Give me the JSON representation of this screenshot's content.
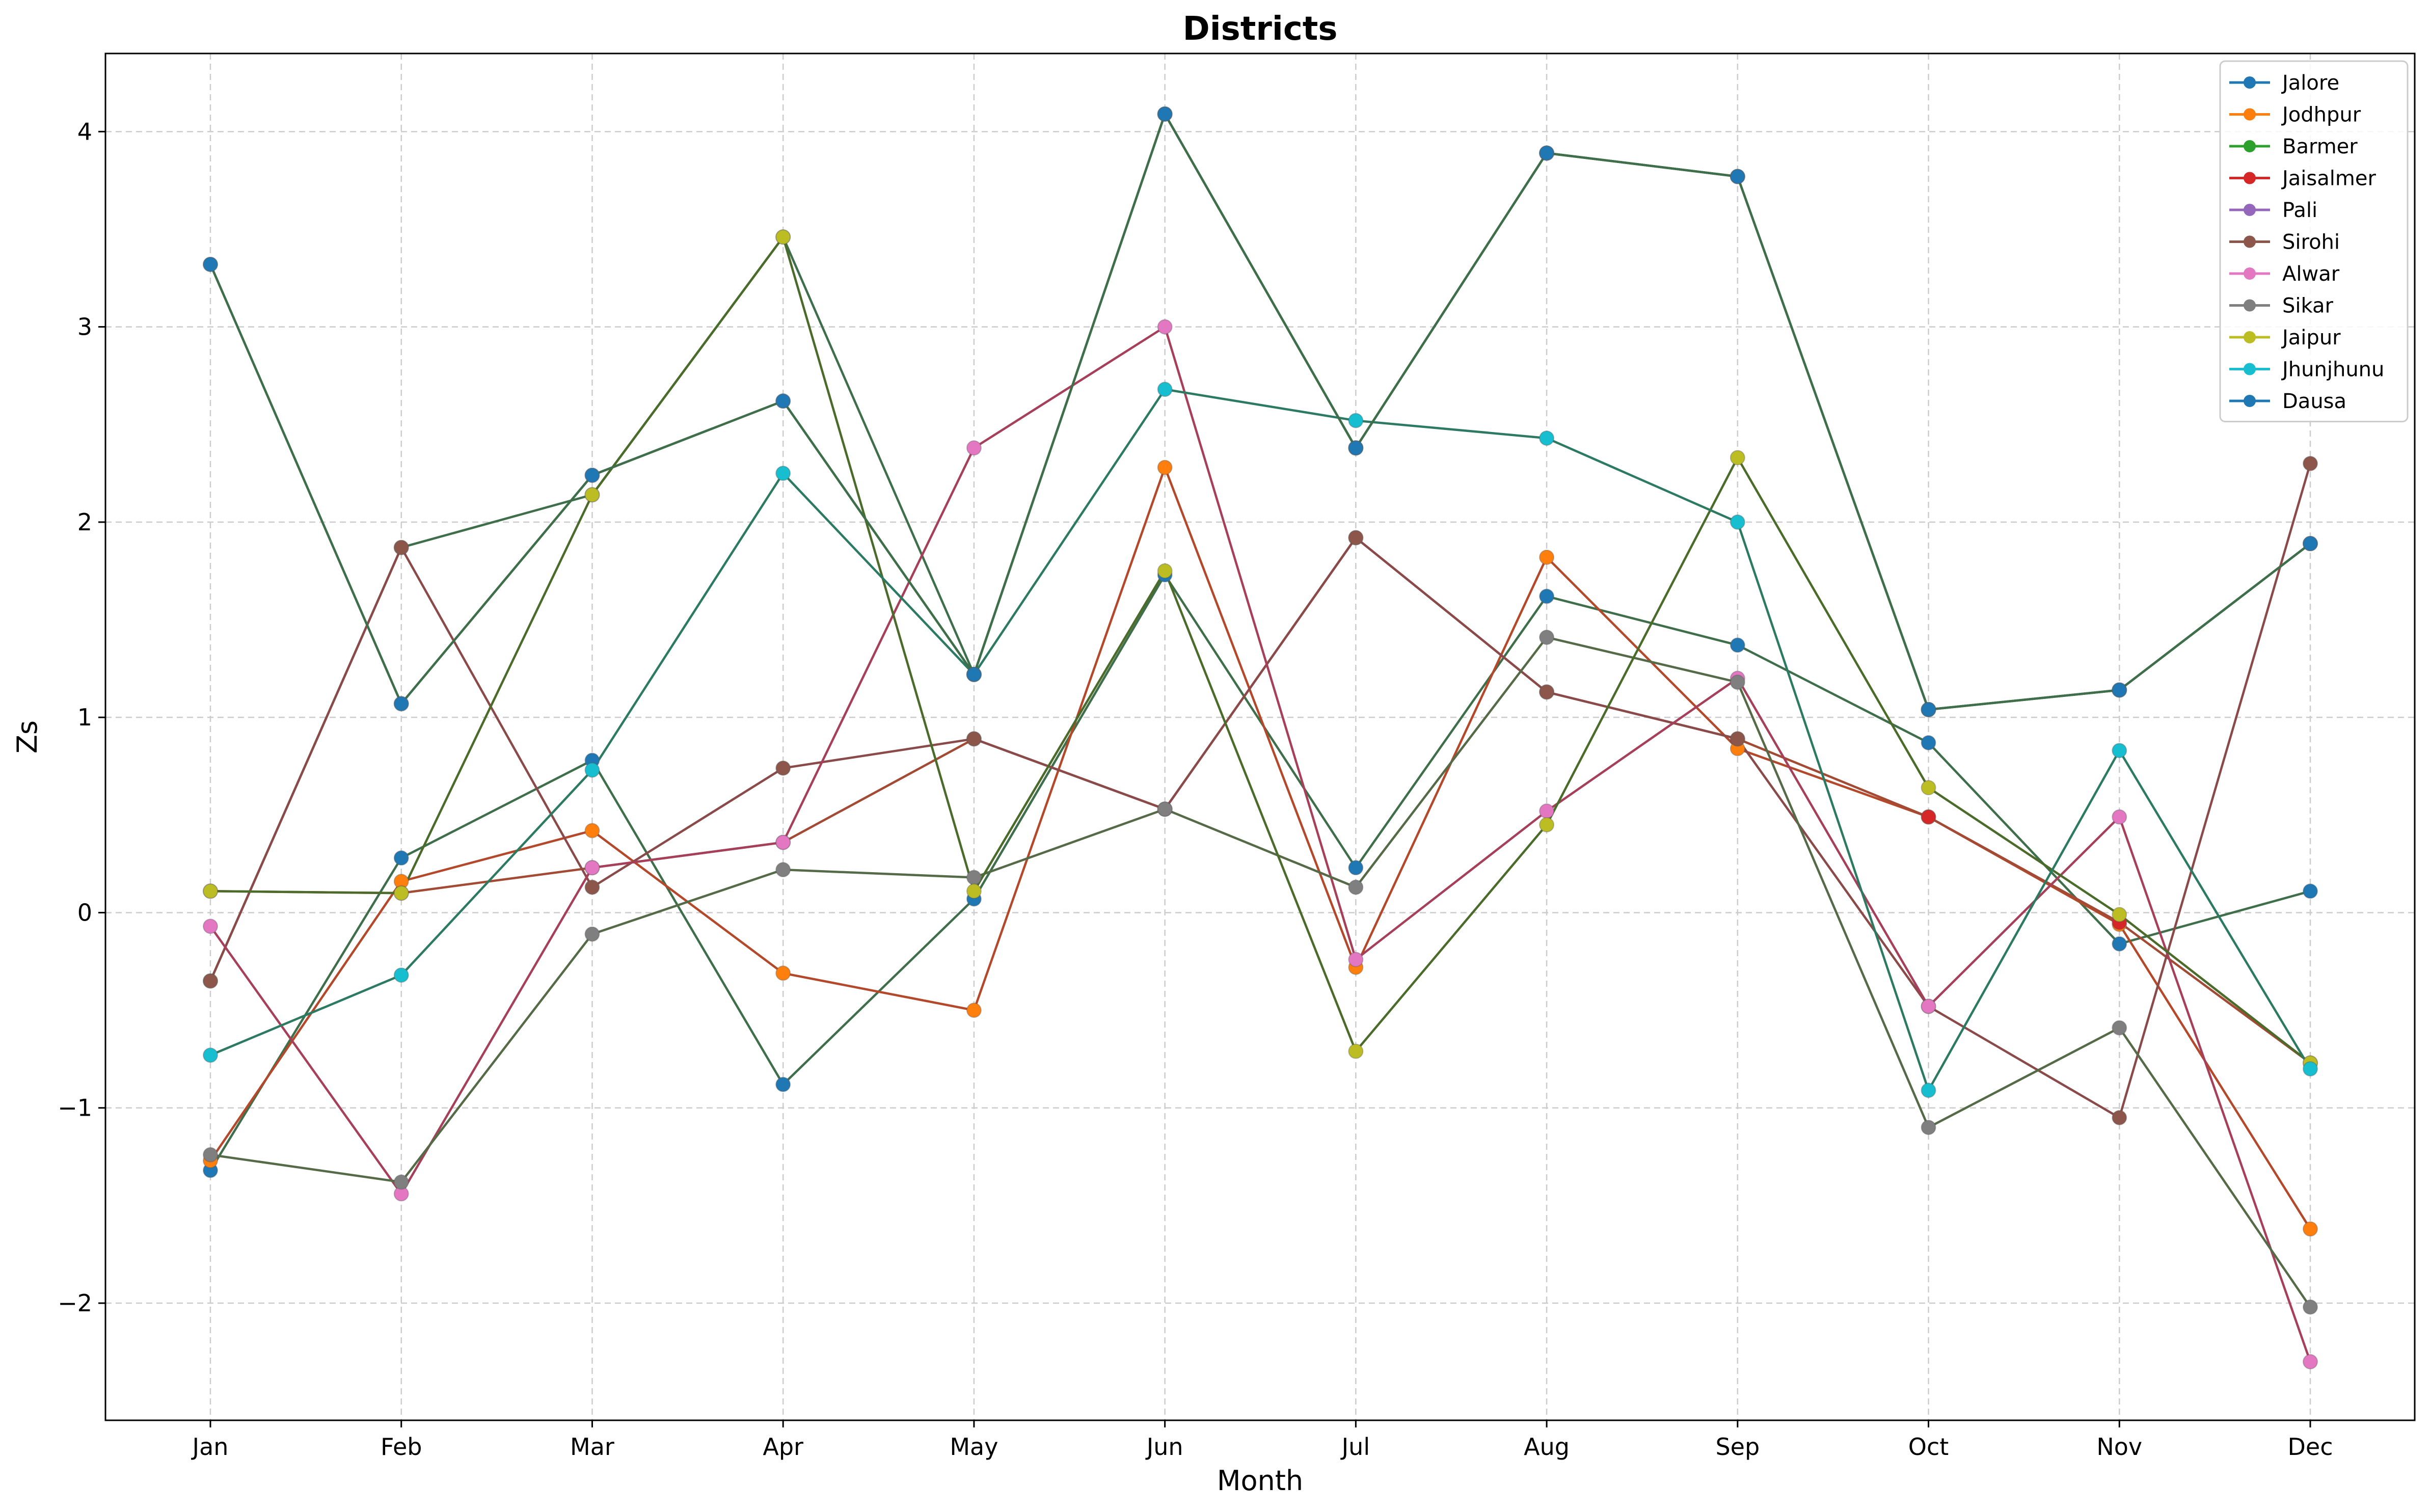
{
  "chart_data": {
    "type": "line",
    "title": "Districts",
    "xlabel": "Month",
    "ylabel": "Zs",
    "categories": [
      "Jan",
      "Feb",
      "Mar",
      "Apr",
      "May",
      "Jun",
      "Jul",
      "Aug",
      "Sep",
      "Oct",
      "Nov",
      "Dec"
    ],
    "ylim": [
      -2.6,
      4.4
    ],
    "yticks": [
      -2,
      -1,
      0,
      1,
      2,
      3,
      4
    ],
    "ytick_labels": [
      "−2",
      "−1",
      "0",
      "1",
      "2",
      "3",
      "4"
    ],
    "grid": true,
    "legend_position": "top-right",
    "series": [
      {
        "name": "Jalore",
        "color": "#1f77b4",
        "values": [
          -1.32,
          0.28,
          0.78,
          -0.88,
          0.07,
          1.73,
          0.23,
          1.62,
          1.37,
          0.87,
          -0.16,
          0.11
        ]
      },
      {
        "name": "Jodhpur",
        "color": "#ff7f0e",
        "values": [
          -1.27,
          0.16,
          0.42,
          -0.31,
          -0.5,
          2.28,
          -0.28,
          1.82,
          0.84,
          0.49,
          -0.06,
          -1.62
        ]
      },
      {
        "name": "Barmer",
        "color": "#2ca02c",
        "values": [
          -0.35,
          1.87,
          2.14,
          3.46,
          1.22,
          4.09,
          2.38,
          3.89,
          3.77,
          1.04,
          1.14,
          1.89
        ]
      },
      {
        "name": "Jaisalmer",
        "color": "#d62728",
        "values": [
          0.11,
          0.1,
          0.23,
          0.36,
          0.89,
          0.53,
          1.92,
          1.13,
          0.89,
          0.49,
          -0.05,
          -0.77
        ]
      },
      {
        "name": "Pali",
        "color": "#9467bd",
        "values": [
          3.32,
          1.07,
          2.24,
          2.62,
          1.22,
          4.09,
          2.38,
          3.89,
          3.77,
          1.04,
          1.14,
          1.89
        ]
      },
      {
        "name": "Sirohi",
        "color": "#8c564b",
        "values": [
          -0.35,
          1.87,
          0.13,
          0.74,
          0.89,
          0.53,
          1.92,
          1.13,
          0.89,
          -0.48,
          -1.05,
          2.3
        ]
      },
      {
        "name": "Alwar",
        "color": "#e377c2",
        "values": [
          -0.07,
          -1.44,
          0.23,
          0.36,
          2.38,
          3.0,
          -0.24,
          0.52,
          1.2,
          -0.48,
          0.49,
          -2.3
        ]
      },
      {
        "name": "Sikar",
        "color": "#7f7f7f",
        "values": [
          -1.24,
          -1.38,
          -0.11,
          0.22,
          0.18,
          0.53,
          0.13,
          1.41,
          1.18,
          -1.1,
          -0.59,
          -2.02
        ]
      },
      {
        "name": "Jaipur",
        "color": "#bcbd22",
        "values": [
          0.11,
          0.1,
          2.14,
          3.46,
          0.11,
          1.75,
          -0.71,
          0.45,
          2.33,
          0.64,
          -0.01,
          -0.77
        ]
      },
      {
        "name": "Jhunjhunu",
        "color": "#17becf",
        "values": [
          -0.73,
          -0.32,
          0.73,
          2.25,
          1.22,
          2.68,
          2.52,
          2.43,
          2.0,
          -0.91,
          0.83,
          -0.8
        ]
      },
      {
        "name": "Dausa",
        "color": "#1f77b4",
        "values": [
          3.32,
          1.07,
          2.24,
          2.62,
          1.22,
          4.09,
          2.38,
          3.89,
          3.77,
          1.04,
          1.14,
          1.89
        ]
      }
    ],
    "line_colors": [
      "#3f6f4a",
      "#b4482a",
      "#3f6f4a",
      "#a34a35",
      "#3f6f4a",
      "#8a4a4a",
      "#a6405a",
      "#556b48",
      "#4b6b2a",
      "#2d7a63",
      "#3f6f4a"
    ]
  }
}
